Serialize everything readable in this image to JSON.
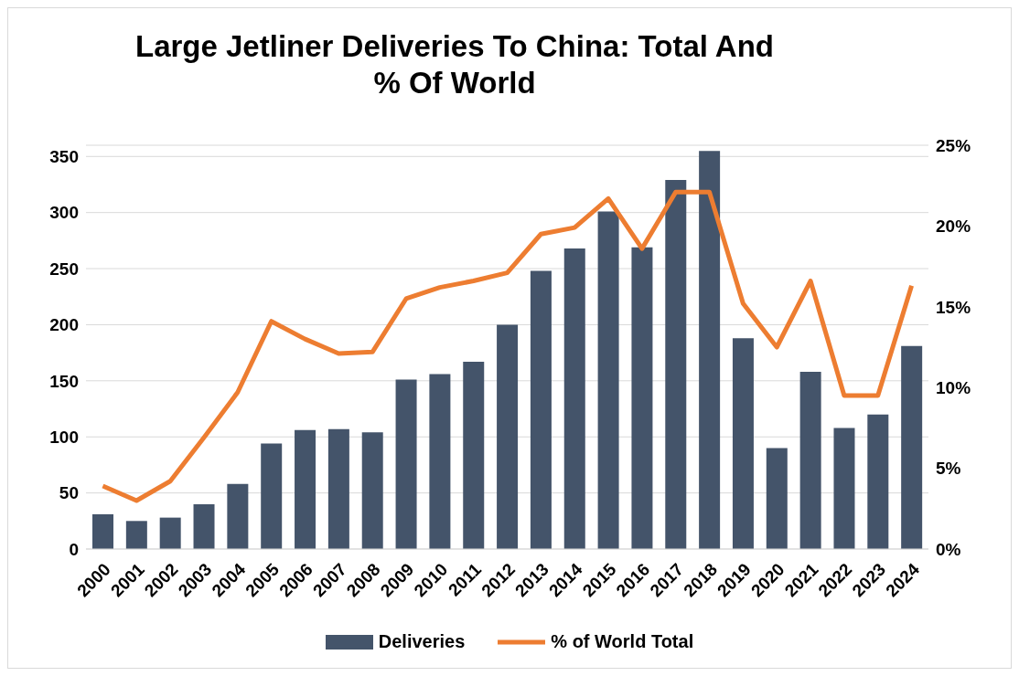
{
  "chart_data": {
    "type": "bar",
    "title": "Large Jetliner Deliveries To China: Total And % Of World",
    "categories": [
      "2000",
      "2001",
      "2002",
      "2003",
      "2004",
      "2005",
      "2006",
      "2007",
      "2008",
      "2009",
      "2010",
      "2011",
      "2012",
      "2013",
      "2014",
      "2015",
      "2016",
      "2017",
      "2018",
      "2019",
      "2020",
      "2021",
      "2022",
      "2023",
      "2024"
    ],
    "series": [
      {
        "name": "Deliveries",
        "color": "#44546a",
        "values": [
          31,
          25,
          28,
          40,
          58,
          94,
          106,
          107,
          104,
          151,
          156,
          167,
          200,
          248,
          268,
          301,
          269,
          329,
          355,
          188,
          90,
          158,
          108,
          120,
          181
        ]
      },
      {
        "name": "% of World Total",
        "type": "line",
        "axis": "y2",
        "color": "#ed7d31",
        "values": [
          3.9,
          3.0,
          4.2,
          6.9,
          9.7,
          14.1,
          13.0,
          12.1,
          12.2,
          15.5,
          16.2,
          16.6,
          17.1,
          19.5,
          19.9,
          21.7,
          18.6,
          22.1,
          22.1,
          15.2,
          12.5,
          16.6,
          9.5,
          9.5,
          16.3
        ]
      }
    ],
    "ylim": [
      0,
      360
    ],
    "yticks": [
      0,
      50,
      100,
      150,
      200,
      250,
      300,
      350
    ],
    "y2lim": [
      0,
      25
    ],
    "y2ticks": [
      {
        "value": 0,
        "label": "0%"
      },
      {
        "value": 5,
        "label": "5%"
      },
      {
        "value": 10,
        "label": "10%"
      },
      {
        "value": 15,
        "label": "15%"
      },
      {
        "value": 20,
        "label": "20%"
      },
      {
        "value": 25,
        "label": "25%"
      }
    ],
    "grid": "y",
    "legend": "bottom",
    "marker": "none",
    "line_style": "solid"
  }
}
